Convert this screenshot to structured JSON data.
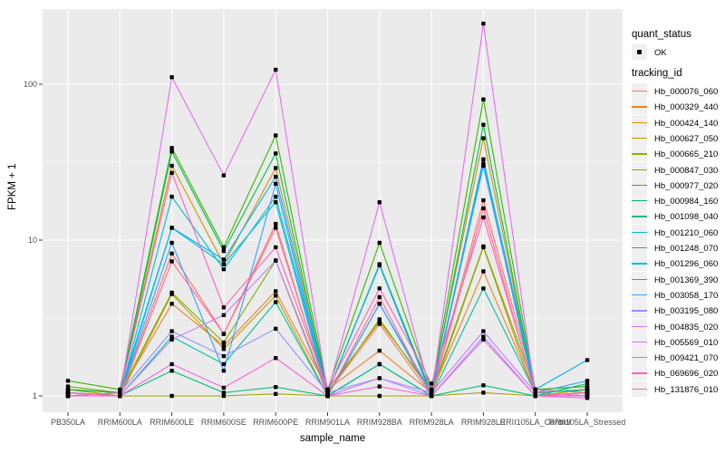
{
  "chart_data": {
    "type": "line",
    "title": "",
    "xlabel": "sample_name",
    "ylabel": "FPKM + 1",
    "y_scale": "log10",
    "y_ticks": [
      1,
      10,
      100
    ],
    "y_tick_labels": [
      "1",
      "10",
      "100"
    ],
    "ylim_log_expanded": [
      0.79,
      316
    ],
    "grid": "on",
    "legend_position": "right",
    "panel_bg": "#EBEBEB",
    "grid_color": "#FFFFFF",
    "point_color": "#000000",
    "axis_text_color": "#4D4D4D",
    "categories": [
      "PB350LA",
      "RRIM600LA",
      "RRIM600LE",
      "RRIM600SE",
      "RRIM600PE",
      "RRIM901LA",
      "RRIM928BA",
      "RRIM928LA",
      "RRIM928LE",
      "RRII105LA_Control",
      "RRII105LA_Stressed"
    ],
    "series": [
      {
        "name": "Hb_000076_060",
        "color": "#F8766D",
        "values": [
          1.05,
          1.0,
          8.2,
          2.5,
          12.0,
          1.05,
          2.9,
          1.0,
          18.0,
          1.1,
          1.05
        ]
      },
      {
        "name": "Hb_000329_440",
        "color": "#EA8331",
        "values": [
          1.0,
          1.05,
          3.9,
          2.1,
          4.7,
          1.1,
          1.95,
          1.05,
          6.3,
          1.05,
          1.1
        ]
      },
      {
        "name": "Hb_000424_140",
        "color": "#D89000",
        "values": [
          1.1,
          1.05,
          30.0,
          7.0,
          29.0,
          1.1,
          3.0,
          1.1,
          45.0,
          1.05,
          1.0
        ]
      },
      {
        "name": "Hb_000627_050",
        "color": "#C09B00",
        "values": [
          1.05,
          1.0,
          4.5,
          2.0,
          4.4,
          1.0,
          1.6,
          1.0,
          9.0,
          1.0,
          1.05
        ]
      },
      {
        "name": "Hb_000665_210",
        "color": "#A3A500",
        "values": [
          1.1,
          1.0,
          1.0,
          1.0,
          1.03,
          1.0,
          1.0,
          1.0,
          1.05,
          1.0,
          1.1
        ]
      },
      {
        "name": "Hb_000847_030",
        "color": "#7CAE00",
        "values": [
          1.15,
          1.05,
          4.6,
          2.2,
          7.4,
          1.05,
          3.1,
          1.05,
          9.1,
          1.1,
          1.15
        ]
      },
      {
        "name": "Hb_000977_020",
        "color": "#39B600",
        "values": [
          1.25,
          1.1,
          39.0,
          9.0,
          47.0,
          1.1,
          9.6,
          1.1,
          80.0,
          1.1,
          1.15
        ]
      },
      {
        "name": "Hb_000984_160",
        "color": "#00BB4E",
        "values": [
          1.1,
          1.05,
          37.0,
          8.5,
          36.0,
          1.05,
          7.0,
          1.05,
          55.0,
          1.05,
          1.1
        ]
      },
      {
        "name": "Hb_001098_040",
        "color": "#00BF7D",
        "values": [
          1.05,
          1.0,
          1.45,
          1.05,
          1.14,
          1.0,
          1.6,
          1.0,
          1.17,
          1.0,
          1.2
        ]
      },
      {
        "name": "Hb_001210_060",
        "color": "#00C1A3",
        "values": [
          1.0,
          1.0,
          2.4,
          1.6,
          4.0,
          1.0,
          1.6,
          1.0,
          4.9,
          1.05,
          1.1
        ]
      },
      {
        "name": "Hb_001248_070",
        "color": "#00BFC4",
        "values": [
          1.05,
          1.0,
          19.0,
          6.5,
          19.0,
          1.05,
          6.9,
          1.0,
          31.0,
          1.0,
          1.05
        ]
      },
      {
        "name": "Hb_001296_060",
        "color": "#00BAE0",
        "values": [
          1.0,
          1.05,
          12.0,
          7.0,
          17.5,
          1.0,
          3.9,
          1.05,
          30.0,
          1.05,
          1.0
        ]
      },
      {
        "name": "Hb_001369_390",
        "color": "#00B0F6",
        "values": [
          1.05,
          1.0,
          12.0,
          7.5,
          25.5,
          1.05,
          6.9,
          1.0,
          33.0,
          1.1,
          1.7
        ]
      },
      {
        "name": "Hb_003058_170",
        "color": "#35A2FF",
        "values": [
          1.0,
          1.0,
          9.6,
          1.45,
          23.0,
          1.0,
          3.9,
          1.0,
          30.0,
          1.05,
          1.25
        ]
      },
      {
        "name": "Hb_003195_080",
        "color": "#9590FF",
        "values": [
          1.0,
          1.05,
          2.6,
          1.8,
          2.7,
          1.05,
          1.3,
          1.0,
          2.4,
          1.0,
          1.05
        ]
      },
      {
        "name": "Hb_004835_020",
        "color": "#C77CFF",
        "values": [
          1.05,
          1.0,
          2.3,
          3.3,
          7.4,
          1.0,
          1.3,
          1.05,
          2.6,
          1.05,
          1.0
        ]
      },
      {
        "name": "Hb_005569_010",
        "color": "#E76BF3",
        "values": [
          1.0,
          1.0,
          111.0,
          26.0,
          124.0,
          1.05,
          17.5,
          1.0,
          245.0,
          1.0,
          1.0
        ]
      },
      {
        "name": "Hb_009421_070",
        "color": "#FA62DB",
        "values": [
          1.0,
          1.0,
          1.6,
          1.13,
          1.75,
          1.0,
          1.15,
          1.0,
          2.3,
          1.0,
          0.97
        ]
      },
      {
        "name": "Hb_069696_020",
        "color": "#FF62BC",
        "values": [
          1.0,
          1.05,
          27.0,
          3.7,
          9.0,
          1.1,
          4.9,
          1.2,
          14.0,
          1.05,
          1.0
        ]
      },
      {
        "name": "Hb_131876_010",
        "color": "#FF6A98",
        "values": [
          1.05,
          1.0,
          7.3,
          2.5,
          12.7,
          1.0,
          4.3,
          1.0,
          16.0,
          1.0,
          1.05
        ]
      }
    ],
    "legend": {
      "quant_status_title": "quant_status",
      "quant_status_items": [
        "OK"
      ],
      "tracking_title": "tracking_id"
    }
  }
}
